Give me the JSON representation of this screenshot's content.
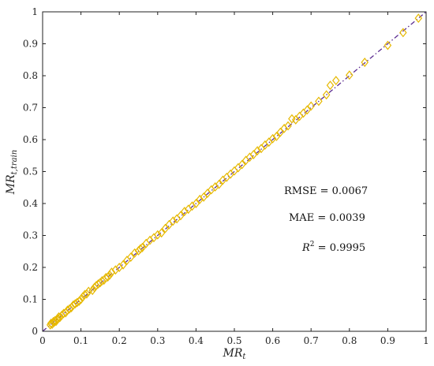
{
  "chart_data": {
    "type": "scatter",
    "xlabel": "MR",
    "xlabel_sub": "t",
    "ylabel": "MR",
    "ylabel_sub": "t,train",
    "xlim": [
      0,
      1
    ],
    "ylim": [
      0,
      1
    ],
    "xticks": [
      "0",
      "0.1",
      "0.2",
      "0.3",
      "0.4",
      "0.5",
      "0.6",
      "0.7",
      "0.8",
      "0.9",
      "1"
    ],
    "yticks": [
      "0",
      "0.1",
      "0.2",
      "0.3",
      "0.4",
      "0.5",
      "0.6",
      "0.7",
      "0.8",
      "0.9",
      "1"
    ],
    "grid": false,
    "marker": "diamond-open",
    "marker_color": "#e6b800",
    "line_color": "#5c2d91",
    "annotations": {
      "rmse": "RMSE = 0.0067",
      "mae": "MAE = 0.0039",
      "r2_label": "R",
      "r2_sup": "2",
      "r2_value": " = 0.9995"
    },
    "reference_line": [
      [
        0,
        0
      ],
      [
        1,
        1
      ]
    ],
    "points": [
      [
        0.02,
        0.02
      ],
      [
        0.022,
        0.025
      ],
      [
        0.025,
        0.022
      ],
      [
        0.028,
        0.03
      ],
      [
        0.03,
        0.028
      ],
      [
        0.032,
        0.033
      ],
      [
        0.035,
        0.031
      ],
      [
        0.038,
        0.036
      ],
      [
        0.04,
        0.039
      ],
      [
        0.042,
        0.045
      ],
      [
        0.045,
        0.043
      ],
      [
        0.05,
        0.05
      ],
      [
        0.055,
        0.056
      ],
      [
        0.06,
        0.058
      ],
      [
        0.065,
        0.066
      ],
      [
        0.07,
        0.07
      ],
      [
        0.075,
        0.074
      ],
      [
        0.08,
        0.082
      ],
      [
        0.085,
        0.086
      ],
      [
        0.09,
        0.09
      ],
      [
        0.095,
        0.094
      ],
      [
        0.1,
        0.1
      ],
      [
        0.105,
        0.108
      ],
      [
        0.11,
        0.115
      ],
      [
        0.115,
        0.117
      ],
      [
        0.12,
        0.125
      ],
      [
        0.13,
        0.128
      ],
      [
        0.135,
        0.137
      ],
      [
        0.14,
        0.143
      ],
      [
        0.145,
        0.148
      ],
      [
        0.15,
        0.152
      ],
      [
        0.155,
        0.158
      ],
      [
        0.16,
        0.16
      ],
      [
        0.165,
        0.168
      ],
      [
        0.17,
        0.17
      ],
      [
        0.175,
        0.176
      ],
      [
        0.18,
        0.185
      ],
      [
        0.19,
        0.192
      ],
      [
        0.2,
        0.2
      ],
      [
        0.21,
        0.208
      ],
      [
        0.22,
        0.222
      ],
      [
        0.23,
        0.232
      ],
      [
        0.24,
        0.245
      ],
      [
        0.25,
        0.252
      ],
      [
        0.255,
        0.258
      ],
      [
        0.26,
        0.262
      ],
      [
        0.27,
        0.275
      ],
      [
        0.28,
        0.285
      ],
      [
        0.29,
        0.293
      ],
      [
        0.3,
        0.302
      ],
      [
        0.31,
        0.308
      ],
      [
        0.32,
        0.322
      ],
      [
        0.33,
        0.334
      ],
      [
        0.34,
        0.345
      ],
      [
        0.35,
        0.352
      ],
      [
        0.36,
        0.362
      ],
      [
        0.37,
        0.375
      ],
      [
        0.38,
        0.382
      ],
      [
        0.39,
        0.392
      ],
      [
        0.4,
        0.4
      ],
      [
        0.41,
        0.413
      ],
      [
        0.42,
        0.42
      ],
      [
        0.43,
        0.432
      ],
      [
        0.44,
        0.443
      ],
      [
        0.45,
        0.452
      ],
      [
        0.46,
        0.46
      ],
      [
        0.47,
        0.473
      ],
      [
        0.48,
        0.482
      ],
      [
        0.49,
        0.492
      ],
      [
        0.5,
        0.502
      ],
      [
        0.51,
        0.512
      ],
      [
        0.52,
        0.522
      ],
      [
        0.53,
        0.535
      ],
      [
        0.54,
        0.545
      ],
      [
        0.55,
        0.553
      ],
      [
        0.56,
        0.565
      ],
      [
        0.57,
        0.572
      ],
      [
        0.58,
        0.583
      ],
      [
        0.59,
        0.592
      ],
      [
        0.6,
        0.603
      ],
      [
        0.61,
        0.61
      ],
      [
        0.62,
        0.623
      ],
      [
        0.63,
        0.635
      ],
      [
        0.64,
        0.643
      ],
      [
        0.65,
        0.665
      ],
      [
        0.66,
        0.662
      ],
      [
        0.67,
        0.673
      ],
      [
        0.68,
        0.683
      ],
      [
        0.69,
        0.693
      ],
      [
        0.7,
        0.705
      ],
      [
        0.72,
        0.72
      ],
      [
        0.74,
        0.74
      ],
      [
        0.75,
        0.77
      ],
      [
        0.765,
        0.785
      ],
      [
        0.8,
        0.802
      ],
      [
        0.84,
        0.842
      ],
      [
        0.9,
        0.895
      ],
      [
        0.94,
        0.935
      ],
      [
        0.98,
        0.98
      ]
    ]
  }
}
